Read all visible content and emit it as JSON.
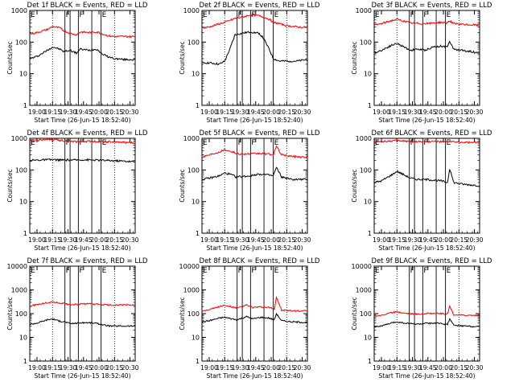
{
  "figure": {
    "xlabel": "Start Time (26-Jun-15 18:52:40)",
    "ylabel": "Counts/sec",
    "x_tick_labels": [
      "19:00",
      "19:15",
      "19:30",
      "19:45",
      "20:00",
      "20:15",
      "20:30"
    ],
    "y_tick_labels_default": [
      "1",
      "10",
      "100",
      "1000"
    ],
    "y_tick_labels_bottom_row": [
      "1",
      "10",
      "100",
      "1000",
      "10000"
    ],
    "flag_labels": {
      "F": "F",
      "E": "E"
    }
  },
  "colors": {
    "events": "#000000",
    "lld": "#ff0000",
    "axes": "#000000"
  },
  "chart_data": [
    {
      "type": "line",
      "title": "Det 1f BLACK = Events, RED = LLD",
      "xlim": [
        "18:53",
        "20:35"
      ],
      "ylim": [
        1,
        1000
      ],
      "yscale": "log",
      "markers": {
        "dotted": [
          "19:15",
          "20:15"
        ],
        "solid": [
          "19:27",
          "19:32",
          "19:40",
          "19:53",
          "20:02"
        ]
      },
      "flag_positions": [
        "19:27",
        "19:40",
        "20:02"
      ],
      "flag_types": [
        "F",
        "F",
        "E"
      ],
      "series": [
        {
          "name": "Events",
          "color": "#000000",
          "times": [
            "18:53",
            "19:00",
            "19:10",
            "19:15",
            "19:22",
            "19:26",
            "19:32",
            "19:38",
            "19:42",
            "19:50",
            "19:58",
            "20:02",
            "20:08",
            "20:15",
            "20:25",
            "20:35"
          ],
          "values": [
            30,
            35,
            55,
            70,
            60,
            50,
            55,
            45,
            60,
            55,
            60,
            45,
            35,
            30,
            28,
            28
          ]
        },
        {
          "name": "LLD",
          "color": "#ff0000",
          "times": [
            "18:53",
            "19:00",
            "19:10",
            "19:15",
            "19:22",
            "19:26",
            "19:32",
            "19:38",
            "19:42",
            "19:50",
            "19:58",
            "20:02",
            "20:08",
            "20:15",
            "20:25",
            "20:35"
          ],
          "values": [
            180,
            200,
            250,
            310,
            280,
            230,
            190,
            170,
            210,
            200,
            210,
            190,
            160,
            150,
            150,
            150
          ]
        }
      ]
    },
    {
      "type": "line",
      "title": "Det 2f BLACK = Events, RED = LLD",
      "xlim": [
        "18:53",
        "20:35"
      ],
      "ylim": [
        1,
        1000
      ],
      "yscale": "log",
      "markers": {
        "dotted": [
          "19:15",
          "20:15"
        ],
        "solid": [
          "19:27",
          "19:32",
          "19:40",
          "19:53",
          "20:02"
        ]
      },
      "flag_positions": [
        "19:27",
        "19:40",
        "20:02"
      ],
      "flag_types": [
        "F",
        "F",
        "E"
      ],
      "series": [
        {
          "name": "Events",
          "color": "#000000",
          "times": [
            "18:53",
            "19:00",
            "19:10",
            "19:15",
            "19:20",
            "19:25",
            "19:32",
            "19:40",
            "19:48",
            "19:52",
            "19:58",
            "20:02",
            "20:08",
            "20:15",
            "20:25",
            "20:35"
          ],
          "values": [
            22,
            22,
            20,
            25,
            60,
            170,
            190,
            210,
            190,
            140,
            60,
            30,
            25,
            25,
            25,
            28
          ]
        },
        {
          "name": "LLD",
          "color": "#ff0000",
          "times": [
            "18:53",
            "19:00",
            "19:10",
            "19:15",
            "19:20",
            "19:25",
            "19:32",
            "19:40",
            "19:48",
            "19:52",
            "19:58",
            "20:02",
            "20:08",
            "20:15",
            "20:25",
            "20:35"
          ],
          "values": [
            280,
            300,
            380,
            420,
            480,
            560,
            620,
            720,
            680,
            620,
            530,
            420,
            380,
            330,
            300,
            290
          ]
        }
      ]
    },
    {
      "type": "line",
      "title": "Det 3f BLACK = Events, RED = LLD",
      "xlim": [
        "18:53",
        "20:35"
      ],
      "ylim": [
        1,
        1000
      ],
      "yscale": "log",
      "markers": {
        "dotted": [
          "19:15",
          "20:15"
        ],
        "solid": [
          "19:27",
          "19:32",
          "19:40",
          "19:53",
          "20:02"
        ]
      },
      "flag_positions": [
        "19:27",
        "19:40",
        "20:02"
      ],
      "flag_types": [
        "F",
        "F",
        "E"
      ],
      "series": [
        {
          "name": "Events",
          "color": "#000000",
          "times": [
            "18:53",
            "19:00",
            "19:10",
            "19:15",
            "19:22",
            "19:28",
            "19:35",
            "19:42",
            "19:50",
            "19:58",
            "20:03",
            "20:06",
            "20:10",
            "20:18",
            "20:27",
            "20:35"
          ],
          "values": [
            45,
            55,
            80,
            90,
            70,
            55,
            60,
            55,
            70,
            75,
            70,
            100,
            60,
            55,
            50,
            45
          ]
        },
        {
          "name": "LLD",
          "color": "#ff0000",
          "times": [
            "18:53",
            "19:00",
            "19:10",
            "19:15",
            "19:22",
            "19:28",
            "19:35",
            "19:42",
            "19:50",
            "19:58",
            "20:03",
            "20:06",
            "20:10",
            "20:18",
            "20:27",
            "20:35"
          ],
          "values": [
            340,
            380,
            480,
            520,
            460,
            400,
            390,
            380,
            400,
            420,
            400,
            470,
            380,
            360,
            350,
            340
          ]
        }
      ]
    },
    {
      "type": "line",
      "title": "Det 4f BLACK = Events, RED = LLD",
      "xlim": [
        "18:53",
        "20:35"
      ],
      "ylim": [
        1,
        1000
      ],
      "yscale": "log",
      "markers": {
        "dotted": [
          "19:15",
          "20:15"
        ],
        "solid": [
          "19:27",
          "19:32",
          "19:40",
          "19:53",
          "20:02"
        ]
      },
      "flag_positions": [
        "19:27",
        "19:40",
        "20:02"
      ],
      "flag_types": [
        "F",
        "F",
        "E"
      ],
      "series": [
        {
          "name": "Events",
          "color": "#000000",
          "times": [
            "18:53",
            "19:00",
            "19:10",
            "19:15",
            "19:25",
            "19:35",
            "19:45",
            "19:55",
            "20:05",
            "20:15",
            "20:25",
            "20:35"
          ],
          "values": [
            200,
            205,
            210,
            210,
            205,
            205,
            210,
            205,
            200,
            195,
            190,
            180
          ]
        },
        {
          "name": "LLD",
          "color": "#ff0000",
          "times": [
            "18:53",
            "19:00",
            "19:10",
            "19:15",
            "19:25",
            "19:35",
            "19:45",
            "19:55",
            "20:05",
            "20:15",
            "20:25",
            "20:35"
          ],
          "values": [
            800,
            870,
            950,
            920,
            850,
            780,
            800,
            800,
            780,
            760,
            740,
            720
          ]
        }
      ]
    },
    {
      "type": "line",
      "title": "Det 5f BLACK = Events, RED = LLD",
      "xlim": [
        "18:53",
        "20:35"
      ],
      "ylim": [
        1,
        1000
      ],
      "yscale": "log",
      "markers": {
        "dotted": [
          "19:15",
          "20:15"
        ],
        "solid": [
          "19:27",
          "19:32",
          "19:40",
          "19:53",
          "20:02"
        ]
      },
      "flag_positions": [
        "19:27",
        "19:40",
        "20:02"
      ],
      "flag_types": [
        "F",
        "F",
        "E"
      ],
      "series": [
        {
          "name": "Events",
          "color": "#000000",
          "times": [
            "18:53",
            "19:00",
            "19:10",
            "19:15",
            "19:22",
            "19:26",
            "19:32",
            "19:40",
            "19:48",
            "19:56",
            "20:02",
            "20:05",
            "20:10",
            "20:20",
            "20:35"
          ],
          "values": [
            50,
            55,
            65,
            80,
            70,
            60,
            62,
            65,
            75,
            70,
            65,
            120,
            60,
            50,
            50
          ]
        },
        {
          "name": "LLD",
          "color": "#ff0000",
          "times": [
            "18:53",
            "19:00",
            "19:10",
            "19:15",
            "19:22",
            "19:26",
            "19:32",
            "19:40",
            "19:48",
            "19:56",
            "20:02",
            "20:05",
            "20:10",
            "20:20",
            "20:35"
          ],
          "values": [
            260,
            300,
            380,
            440,
            380,
            330,
            320,
            320,
            330,
            320,
            300,
            560,
            300,
            270,
            250
          ]
        }
      ]
    },
    {
      "type": "line",
      "title": "Det 6f BLACK = Events, RED = LLD",
      "xlim": [
        "18:53",
        "20:35"
      ],
      "ylim": [
        1,
        1000
      ],
      "yscale": "log",
      "markers": {
        "dotted": [
          "19:15",
          "20:15"
        ],
        "solid": [
          "19:27",
          "19:32",
          "19:40",
          "19:53",
          "20:02"
        ]
      },
      "flag_positions": [
        "19:27",
        "19:40",
        "20:02"
      ],
      "flag_types": [
        "F",
        "F",
        "E"
      ],
      "series": [
        {
          "name": "Events",
          "color": "#000000",
          "times": [
            "18:53",
            "19:00",
            "19:10",
            "19:15",
            "19:22",
            "19:28",
            "19:35",
            "19:42",
            "19:50",
            "19:58",
            "20:04",
            "20:06",
            "20:10",
            "20:20",
            "20:35"
          ],
          "values": [
            40,
            45,
            70,
            90,
            70,
            55,
            50,
            50,
            48,
            45,
            40,
            110,
            40,
            35,
            32
          ]
        },
        {
          "name": "LLD",
          "color": "#ff0000",
          "times": [
            "18:53",
            "19:00",
            "19:10",
            "19:15",
            "19:22",
            "19:28",
            "19:35",
            "19:42",
            "19:50",
            "19:58",
            "20:04",
            "20:06",
            "20:10",
            "20:20",
            "20:35"
          ],
          "values": [
            780,
            800,
            830,
            850,
            820,
            790,
            790,
            790,
            790,
            780,
            780,
            820,
            760,
            740,
            730
          ]
        }
      ]
    },
    {
      "type": "line",
      "title": "Det 7f BLACK = Events, RED = LLD",
      "xlim": [
        "18:53",
        "20:35"
      ],
      "ylim": [
        1,
        10000
      ],
      "yscale": "log",
      "markers": {
        "dotted": [
          "19:15",
          "20:15"
        ],
        "solid": [
          "19:27",
          "19:32",
          "19:40",
          "19:53",
          "20:02"
        ]
      },
      "flag_positions": [
        "19:27",
        "19:40",
        "20:02"
      ],
      "flag_types": [
        "F",
        "F",
        "E"
      ],
      "series": [
        {
          "name": "Events",
          "color": "#000000",
          "times": [
            "18:53",
            "19:00",
            "19:10",
            "19:15",
            "19:22",
            "19:27",
            "19:32",
            "19:40",
            "19:48",
            "19:56",
            "20:02",
            "20:10",
            "20:20",
            "20:35"
          ],
          "values": [
            35,
            40,
            55,
            60,
            48,
            45,
            38,
            40,
            42,
            40,
            35,
            30,
            30,
            30
          ]
        },
        {
          "name": "LLD",
          "color": "#ff0000",
          "times": [
            "18:53",
            "19:00",
            "19:10",
            "19:15",
            "19:22",
            "19:27",
            "19:32",
            "19:40",
            "19:48",
            "19:56",
            "20:02",
            "20:10",
            "20:20",
            "20:35"
          ],
          "values": [
            210,
            240,
            290,
            310,
            280,
            260,
            240,
            250,
            260,
            250,
            240,
            230,
            230,
            230
          ]
        }
      ]
    },
    {
      "type": "line",
      "title": "Det 8f BLACK = Events, RED = LLD",
      "xlim": [
        "18:53",
        "20:35"
      ],
      "ylim": [
        1,
        10000
      ],
      "yscale": "log",
      "markers": {
        "dotted": [
          "19:15",
          "20:15"
        ],
        "solid": [
          "19:27",
          "19:32",
          "19:40",
          "19:53",
          "20:02"
        ]
      },
      "flag_positions": [
        "19:27",
        "19:40",
        "20:02"
      ],
      "flag_types": [
        "F",
        "F",
        "E"
      ],
      "series": [
        {
          "name": "Events",
          "color": "#000000",
          "times": [
            "18:53",
            "19:00",
            "19:10",
            "19:15",
            "19:22",
            "19:27",
            "19:32",
            "19:36",
            "19:42",
            "19:50",
            "19:58",
            "20:03",
            "20:05",
            "20:10",
            "20:20",
            "20:35"
          ],
          "values": [
            45,
            50,
            65,
            70,
            60,
            55,
            65,
            75,
            60,
            70,
            65,
            55,
            100,
            50,
            45,
            42
          ]
        },
        {
          "name": "LLD",
          "color": "#ff0000",
          "times": [
            "18:53",
            "19:00",
            "19:10",
            "19:15",
            "19:22",
            "19:27",
            "19:32",
            "19:36",
            "19:42",
            "19:50",
            "19:58",
            "20:03",
            "20:05",
            "20:10",
            "20:20",
            "20:35"
          ],
          "values": [
            130,
            150,
            200,
            220,
            190,
            170,
            200,
            230,
            180,
            190,
            180,
            160,
            500,
            140,
            130,
            130
          ]
        }
      ]
    },
    {
      "type": "line",
      "title": "Det 9f BLACK = Events, RED = LLD",
      "xlim": [
        "18:53",
        "20:35"
      ],
      "ylim": [
        1,
        10000
      ],
      "yscale": "log",
      "markers": {
        "dotted": [
          "19:15",
          "20:15"
        ],
        "solid": [
          "19:27",
          "19:32",
          "19:40",
          "19:53",
          "20:02"
        ]
      },
      "flag_positions": [
        "19:27",
        "19:40",
        "20:02"
      ],
      "flag_types": [
        "F",
        "F",
        "E"
      ],
      "series": [
        {
          "name": "Events",
          "color": "#000000",
          "times": [
            "18:53",
            "19:00",
            "19:10",
            "19:15",
            "19:22",
            "19:28",
            "19:35",
            "19:42",
            "19:50",
            "19:58",
            "20:04",
            "20:06",
            "20:10",
            "20:20",
            "20:35"
          ],
          "values": [
            28,
            30,
            40,
            45,
            40,
            38,
            36,
            38,
            40,
            38,
            35,
            60,
            32,
            30,
            28
          ]
        },
        {
          "name": "LLD",
          "color": "#ff0000",
          "times": [
            "18:53",
            "19:00",
            "19:10",
            "19:15",
            "19:22",
            "19:28",
            "19:35",
            "19:42",
            "19:50",
            "19:58",
            "20:04",
            "20:06",
            "20:10",
            "20:20",
            "20:35"
          ],
          "values": [
            80,
            85,
            110,
            120,
            105,
            100,
            95,
            100,
            105,
            100,
            95,
            200,
            90,
            85,
            85
          ]
        }
      ]
    }
  ]
}
